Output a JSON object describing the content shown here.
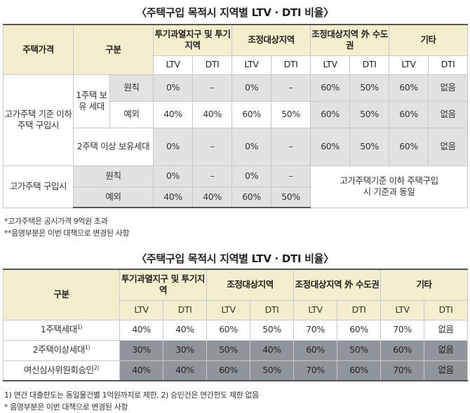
{
  "table1": {
    "title": "〈주택구입 목적시 지역별 LTV · DTI 비율〉",
    "headers": {
      "price": "주택가격",
      "category": "구분",
      "zone1": "투기과열지구 및 투기지역",
      "zone2": "조정대상지역",
      "zone3": "조정대상지역 外 수도권",
      "zone4": "기타",
      "ltv": "LTV",
      "dti": "DTI"
    },
    "group_high": "고가주택 기준 이하 주택 구입시",
    "group_over": "고가주택 구입시",
    "sub_one_house": "1주택 보유 세대",
    "rows": [
      {
        "label": "원칙",
        "values": [
          "0%",
          "–",
          "0%",
          "–",
          "60%",
          "50%",
          "60%",
          "없음"
        ]
      },
      {
        "label": "예외",
        "values": [
          "40%",
          "40%",
          "60%",
          "50%",
          "60%",
          "50%",
          "60%",
          "없음"
        ]
      },
      {
        "label": "2주택 이상 보유세대",
        "values": [
          "0%",
          "–",
          "0%",
          "–",
          "60%",
          "50%",
          "60%",
          "없음"
        ]
      },
      {
        "label": "원칙",
        "values": [
          "0%",
          "–",
          "0%",
          "–"
        ]
      },
      {
        "label": "예외",
        "values": [
          "40%",
          "40%",
          "60%",
          "50%"
        ]
      }
    ],
    "merged_note": "고가주택기준 이하 주택구입시 기준과 동일",
    "notes": [
      "*고가주택은 공시가격 9억원 초과",
      "**음영부분은 이번 대책으로 변경된 사항"
    ]
  },
  "table2": {
    "title": "〈주택구입 목적시 지역별 LTV · DTI 비율〉",
    "headers": {
      "category": "구분",
      "zone1": "투기과열지구 및 투기지역",
      "zone2": "조정대상지역",
      "zone3": "조정대상지역 外 수도권",
      "zone4": "기타",
      "ltv": "LTV",
      "dti": "DTI"
    },
    "rows": [
      {
        "label": "1주택세대",
        "sup": "1)",
        "values": [
          "40%",
          "40%",
          "60%",
          "50%",
          "70%",
          "60%",
          "70%",
          "없음"
        ]
      },
      {
        "label": "2주택이상세대",
        "sup": "1)",
        "values": [
          "30%",
          "30%",
          "50%",
          "40%",
          "60%",
          "50%",
          "60%",
          "없음"
        ]
      },
      {
        "label": "여신심사위원회승인",
        "sup": "2)",
        "values": [
          "40%",
          "40%",
          "60%",
          "50%",
          "70%",
          "60%",
          "70%",
          "없음"
        ]
      }
    ],
    "notes": [
      "1) 연간 대출한도는 동일물건별 1억원까지로 제한,  2) 승인건은 연간한도 제한 없음",
      "* 음영부분은 이번 대책으로 변경된 사항"
    ]
  }
}
